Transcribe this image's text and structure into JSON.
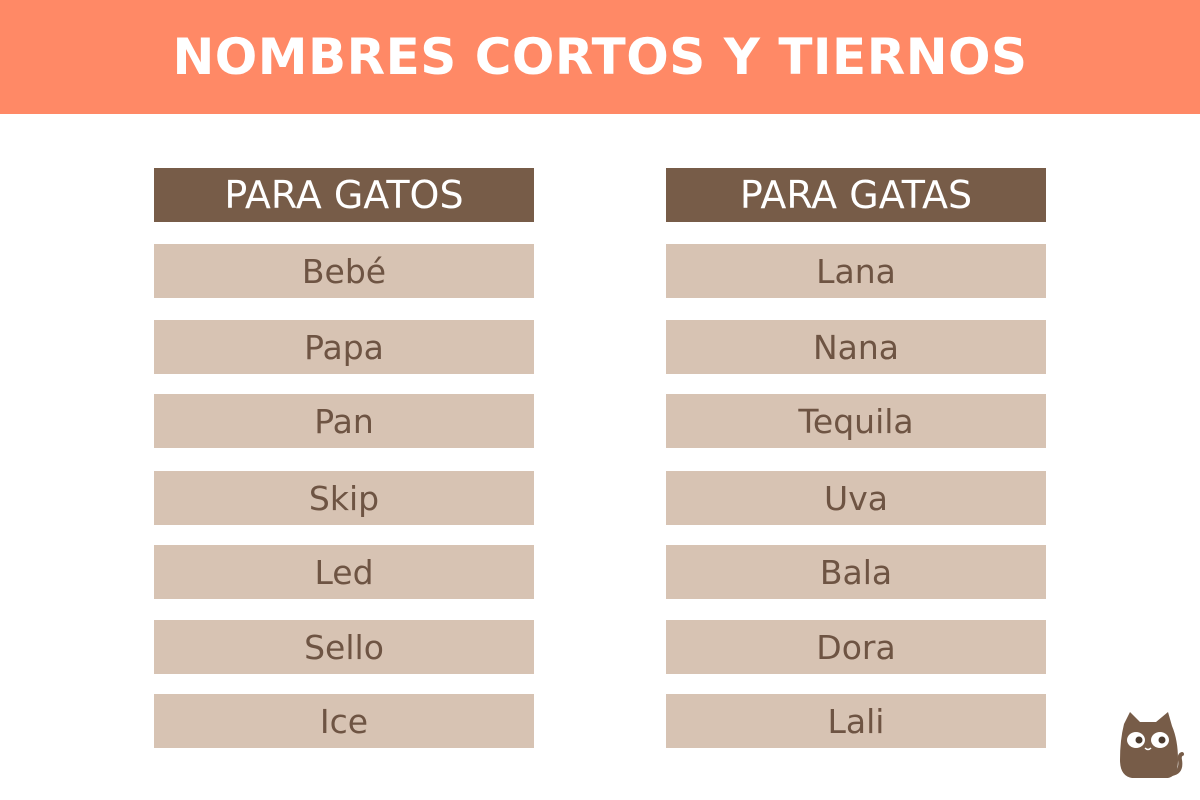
{
  "title": "NOMBRES CORTOS Y TIERNOS",
  "columns": [
    {
      "header": "PARA GATOS",
      "names": [
        "Bebé",
        "Papa",
        "Pan",
        "Skip",
        "Led",
        "Sello",
        "Ice"
      ]
    },
    {
      "header": "PARA GATAS",
      "names": [
        "Lana",
        "Nana",
        "Tequila",
        "Uva",
        "Bala",
        "Dora",
        "Lali"
      ]
    }
  ],
  "logo": {
    "icon": "cat-icon"
  },
  "colors": {
    "banner": "#FF8966",
    "header": "#775C48",
    "row": "#D7C3B3",
    "text": "#6E5443"
  }
}
